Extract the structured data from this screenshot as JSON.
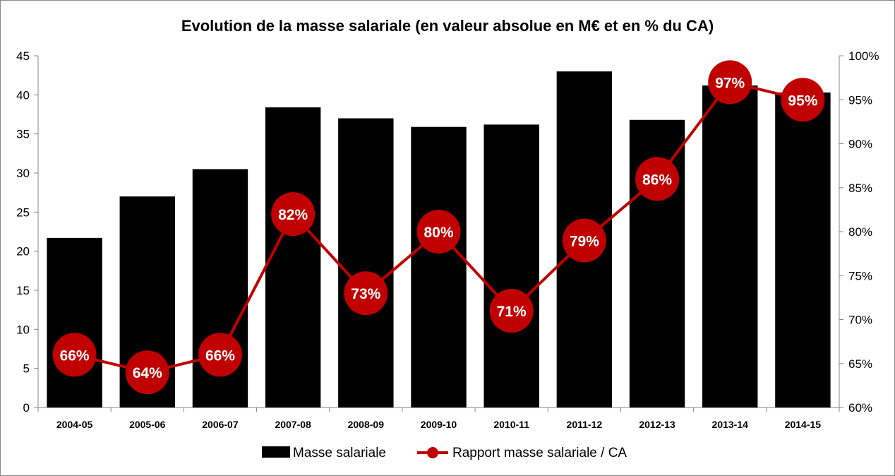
{
  "chart_data": {
    "type": "bar",
    "title": "Evolution de la masse salariale (en valeur absolue en M€ et en % du CA)",
    "categories": [
      "2004-05",
      "2005-06",
      "2006-07",
      "2007-08",
      "2008-09",
      "2009-10",
      "2010-11",
      "2011-12",
      "2012-13",
      "2013-14",
      "2014-15"
    ],
    "series": [
      {
        "name": "Masse salariale",
        "type": "bar",
        "axis": "left",
        "color": "#000000",
        "values": [
          21.7,
          27.0,
          30.5,
          38.4,
          37.0,
          35.9,
          36.2,
          43.0,
          36.8,
          41.2,
          40.3
        ]
      },
      {
        "name": "Rapport masse salariale / CA",
        "type": "line",
        "axis": "right",
        "color": "#c00000",
        "values": [
          0.66,
          0.64,
          0.66,
          0.82,
          0.73,
          0.8,
          0.71,
          0.79,
          0.86,
          0.97,
          0.95
        ],
        "labels": [
          "66%",
          "64%",
          "66%",
          "82%",
          "73%",
          "80%",
          "71%",
          "79%",
          "86%",
          "97%",
          "95%"
        ]
      }
    ],
    "y_left": {
      "min": 0,
      "max": 45,
      "ticks": [
        "0",
        "5",
        "10",
        "15",
        "20",
        "25",
        "30",
        "35",
        "40",
        "45"
      ]
    },
    "y_right": {
      "min": 0.6,
      "max": 1.0,
      "ticks": [
        "60%",
        "65%",
        "70%",
        "75%",
        "80%",
        "85%",
        "90%",
        "95%",
        "100%"
      ]
    },
    "grid": false,
    "legend_position": "bottom"
  }
}
